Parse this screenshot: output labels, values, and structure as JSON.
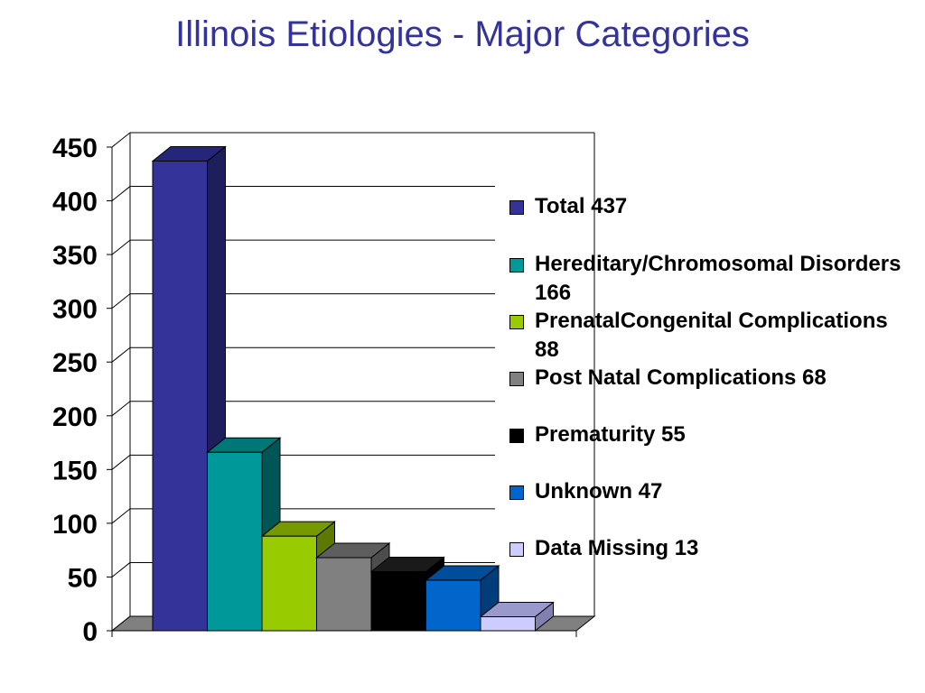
{
  "title": "Illinois Etiologies - Major Categories",
  "chart_data": {
    "type": "bar",
    "title": "Illinois Etiologies - Major Categories",
    "ylim": [
      0,
      450
    ],
    "yticks": [
      "0",
      "50",
      "100",
      "150",
      "200",
      "250",
      "300",
      "350",
      "400",
      "450"
    ],
    "grid": true,
    "legend_position": "right",
    "series": [
      {
        "name": "Total 437",
        "value": 437,
        "color": "#333399",
        "side": "#1e1e5c",
        "top": "#25257a"
      },
      {
        "name": "Hereditary/Chromosomal Disorders 166",
        "value": 166,
        "color": "#009999",
        "side": "#005555",
        "top": "#007777"
      },
      {
        "name": "PrenatalCongenital Complications 88",
        "value": 88,
        "color": "#99cc00",
        "side": "#5c7a00",
        "top": "#779900"
      },
      {
        "name": "Post Natal Complications 68",
        "value": 68,
        "color": "#808080",
        "side": "#4d4d4d",
        "top": "#5e5e5e"
      },
      {
        "name": "Prematurity 55",
        "value": 55,
        "color": "#000000",
        "side": "#000000",
        "top": "#1a1a1a"
      },
      {
        "name": "Unknown 47",
        "value": 47,
        "color": "#0066cc",
        "side": "#003d7a",
        "top": "#004d99"
      },
      {
        "name": "Data Missing 13",
        "value": 13,
        "color": "#ccccff",
        "side": "#8080b3",
        "top": "#9999cc"
      }
    ]
  }
}
